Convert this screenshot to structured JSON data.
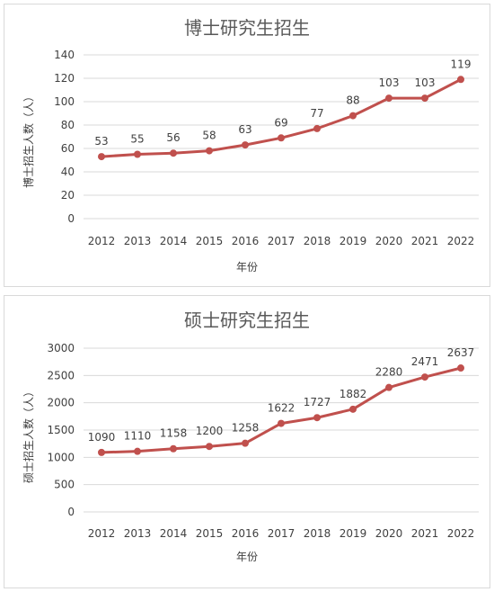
{
  "chart_data": [
    {
      "type": "line",
      "title": "博士研究生招生",
      "xlabel": "年份",
      "ylabel": "博士招生人数（人）",
      "x": [
        "2012",
        "2013",
        "2014",
        "2015",
        "2016",
        "2017",
        "2018",
        "2019",
        "2020",
        "2021",
        "2022"
      ],
      "series": [
        {
          "values": [
            53,
            55,
            56,
            58,
            63,
            69,
            77,
            88,
            103,
            103,
            119
          ]
        }
      ],
      "ylim": [
        0,
        140
      ],
      "yticks": [
        0,
        20,
        40,
        60,
        80,
        100,
        120,
        140
      ],
      "grid": true,
      "color": "#c0504d"
    },
    {
      "type": "line",
      "title": "硕士研究生招生",
      "xlabel": "年份",
      "ylabel": "硕士招生人数（人）",
      "x": [
        "2012",
        "2013",
        "2014",
        "2015",
        "2016",
        "2017",
        "2018",
        "2019",
        "2020",
        "2021",
        "2022"
      ],
      "series": [
        {
          "values": [
            1090,
            1110,
            1158,
            1200,
            1258,
            1622,
            1727,
            1882,
            2280,
            2471,
            2637
          ]
        }
      ],
      "ylim": [
        0,
        3000
      ],
      "yticks": [
        0,
        500,
        1000,
        1500,
        2000,
        2500,
        3000
      ],
      "grid": true,
      "color": "#c0504d"
    }
  ]
}
